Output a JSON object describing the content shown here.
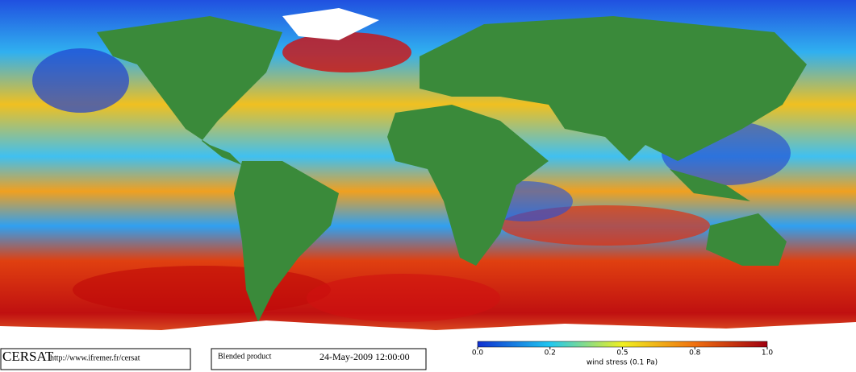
{
  "footer": {
    "logo": "CERSAT",
    "url": "http://www.ifremer.fr/cersat",
    "product": "Blended product",
    "date": "24-May-2009 12:00:00"
  },
  "colorbar": {
    "ticks": [
      "0.0",
      "0.2",
      "0.5",
      "0.8",
      "1.0"
    ],
    "label": "wind stress (0.1 Pa)"
  }
}
